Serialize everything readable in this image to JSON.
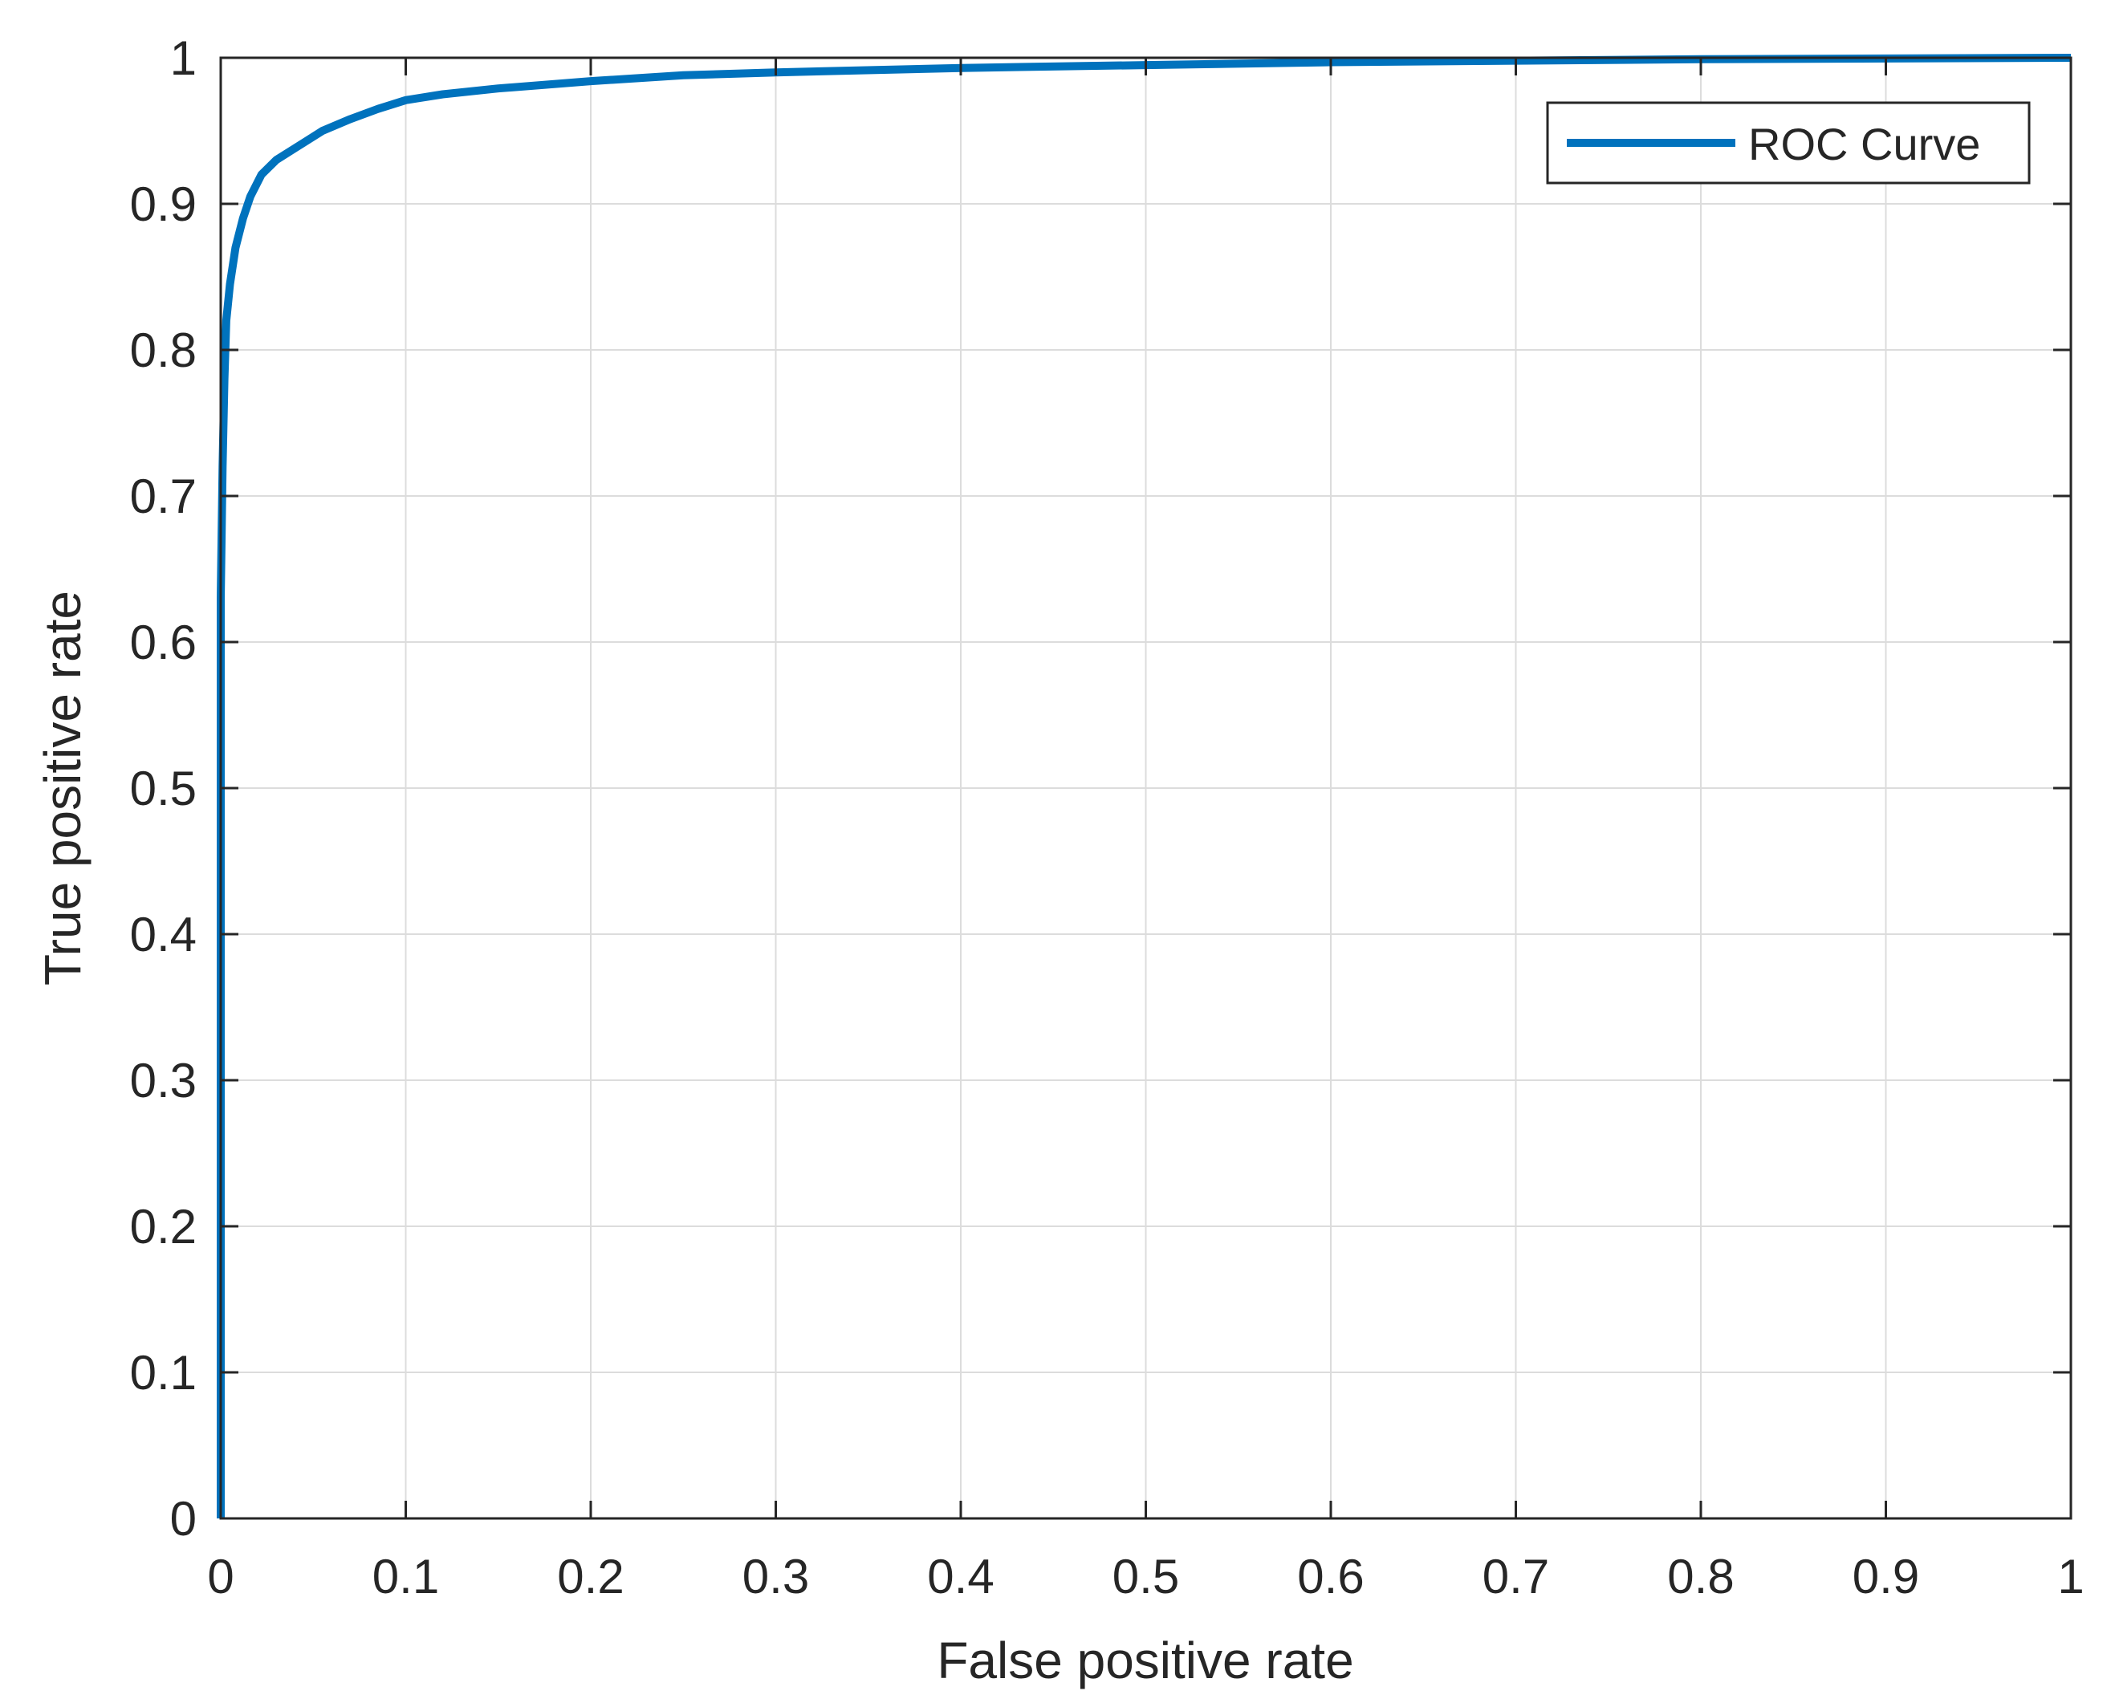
{
  "chart_data": {
    "type": "line",
    "title": "",
    "xlabel": "False positive rate",
    "ylabel": "True positive rate",
    "xlim": [
      0,
      1
    ],
    "ylim": [
      0,
      1
    ],
    "grid": true,
    "legend_position": "top-right",
    "x_ticks": [
      "0",
      "0.1",
      "0.2",
      "0.3",
      "0.4",
      "0.5",
      "0.6",
      "0.7",
      "0.8",
      "0.9",
      "1"
    ],
    "y_ticks": [
      "0",
      "0.1",
      "0.2",
      "0.3",
      "0.4",
      "0.5",
      "0.6",
      "0.7",
      "0.8",
      "0.9",
      "1"
    ],
    "series": [
      {
        "name": "ROC Curve",
        "color": "#0072BD",
        "x": [
          0,
          0,
          0.001,
          0.002,
          0.003,
          0.005,
          0.008,
          0.012,
          0.016,
          0.022,
          0.03,
          0.04,
          0.055,
          0.07,
          0.085,
          0.1,
          0.12,
          0.15,
          0.2,
          0.25,
          0.3,
          0.4,
          0.5,
          0.6,
          0.7,
          0.8,
          0.9,
          1.0
        ],
        "y": [
          0,
          0.63,
          0.72,
          0.78,
          0.82,
          0.845,
          0.87,
          0.89,
          0.905,
          0.92,
          0.93,
          0.938,
          0.95,
          0.958,
          0.965,
          0.971,
          0.975,
          0.979,
          0.984,
          0.988,
          0.99,
          0.993,
          0.995,
          0.997,
          0.998,
          0.999,
          0.9995,
          1.0
        ]
      }
    ]
  }
}
